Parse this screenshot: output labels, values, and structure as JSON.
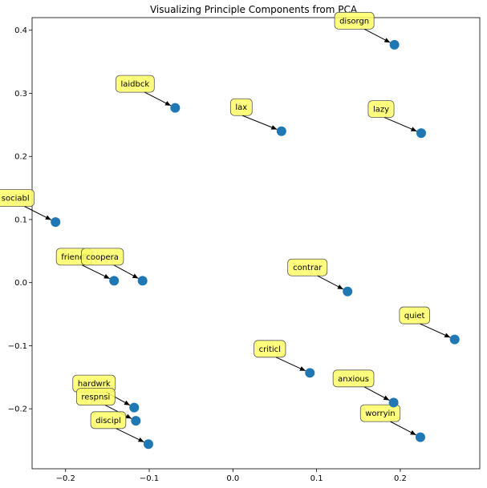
{
  "chart_data": {
    "type": "scatter",
    "title": "Visualizing Principle Components from PCA",
    "xlabel": "",
    "ylabel": "",
    "xlim": [
      -0.24,
      0.295
    ],
    "ylim": [
      -0.295,
      0.42
    ],
    "xticks": [
      -0.2,
      -0.1,
      0.0,
      0.1,
      0.2
    ],
    "xtick_labels": [
      "−0.2",
      "−0.1",
      "0.0",
      "0.1",
      "0.2"
    ],
    "yticks": [
      -0.2,
      -0.1,
      0.0,
      0.1,
      0.2,
      0.3,
      0.4
    ],
    "ytick_labels": [
      "−0.2",
      "−0.1",
      "0.0",
      "0.1",
      "0.2",
      "0.3",
      "0.4"
    ],
    "grid": false,
    "point_color": "#1f77b4",
    "label_bg_color": "#ffff66",
    "points": [
      {
        "label": "disorgn",
        "x": 0.193,
        "y": 0.377
      },
      {
        "label": "laidbck",
        "x": -0.069,
        "y": 0.277
      },
      {
        "label": "lax",
        "x": 0.058,
        "y": 0.24
      },
      {
        "label": "lazy",
        "x": 0.225,
        "y": 0.237
      },
      {
        "label": "sociabl",
        "x": -0.212,
        "y": 0.096
      },
      {
        "label": "friendl",
        "x": -0.142,
        "y": 0.003
      },
      {
        "label": "coopera",
        "x": -0.108,
        "y": 0.003
      },
      {
        "label": "contrar",
        "x": 0.137,
        "y": -0.014
      },
      {
        "label": "quiet",
        "x": 0.265,
        "y": -0.09
      },
      {
        "label": "criticl",
        "x": 0.092,
        "y": -0.143
      },
      {
        "label": "anxious",
        "x": 0.192,
        "y": -0.19
      },
      {
        "label": "hardwrk",
        "x": -0.118,
        "y": -0.198
      },
      {
        "label": "respnsi",
        "x": -0.116,
        "y": -0.219
      },
      {
        "label": "worryin",
        "x": 0.224,
        "y": -0.245
      },
      {
        "label": "discipl",
        "x": -0.101,
        "y": -0.256
      }
    ]
  }
}
